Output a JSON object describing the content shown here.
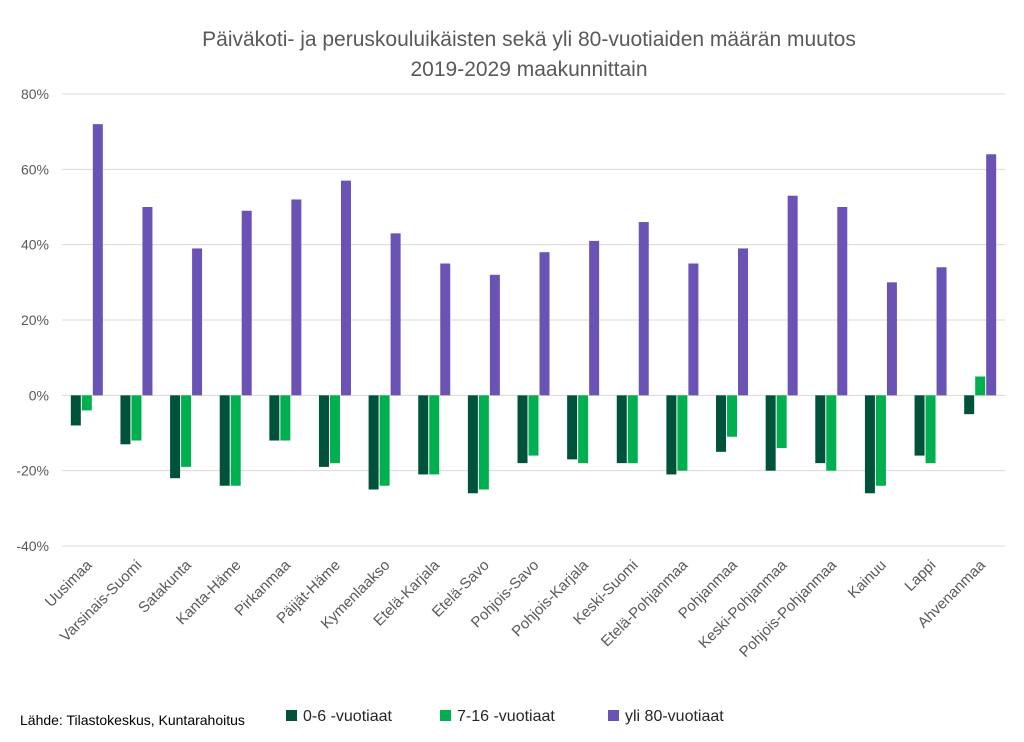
{
  "chart_data": {
    "type": "bar",
    "title_lines": [
      "Päiväkoti- ja peruskouluikäisten sekä yli 80-vuotiaiden määrän muutos",
      "2019-2029 maakunnittain"
    ],
    "categories": [
      "Uusimaa",
      "Varsinais-Suomi",
      "Satakunta",
      "Kanta-Häme",
      "Pirkanmaa",
      "Päijät-Häme",
      "Kymenlaakso",
      "Etelä-Karjala",
      "Etelä-Savo",
      "Pohjois-Savo",
      "Pohjois-Karjala",
      "Keski-Suomi",
      "Etelä-Pohjanmaa",
      "Pohjanmaa",
      "Keski-Pohjanmaa",
      "Pohjois-Pohjanmaa",
      "Kainuu",
      "Lappi",
      "Ahvenanmaa"
    ],
    "series": [
      {
        "name": "0-6 -vuotiaat",
        "color": "#00533a",
        "values": [
          -8,
          -13,
          -22,
          -24,
          -12,
          -19,
          -25,
          -21,
          -26,
          -18,
          -17,
          -18,
          -21,
          -15,
          -20,
          -18,
          -26,
          -16,
          -5
        ]
      },
      {
        "name": "7-16 -vuotiaat",
        "color": "#00b050",
        "values": [
          -4,
          -12,
          -19,
          -24,
          -12,
          -18,
          -24,
          -21,
          -25,
          -16,
          -18,
          -18,
          -20,
          -11,
          -14,
          -20,
          -24,
          -18,
          5
        ]
      },
      {
        "name": "yli 80-vuotiaat",
        "color": "#6b53b5",
        "values": [
          72,
          50,
          39,
          49,
          52,
          57,
          43,
          35,
          32,
          38,
          41,
          46,
          35,
          39,
          53,
          50,
          30,
          34,
          64
        ]
      }
    ],
    "yticks": [
      "80%",
      "60%",
      "40%",
      "20%",
      "0%",
      "-20%",
      "-40%"
    ],
    "ytick_values": [
      80,
      60,
      40,
      20,
      0,
      -20,
      -40
    ],
    "ylim": [
      -40,
      80
    ],
    "grid": true,
    "legend_position": "bottom",
    "source": "Lähde: Tilastokeskus,  Kuntarahoitus"
  }
}
